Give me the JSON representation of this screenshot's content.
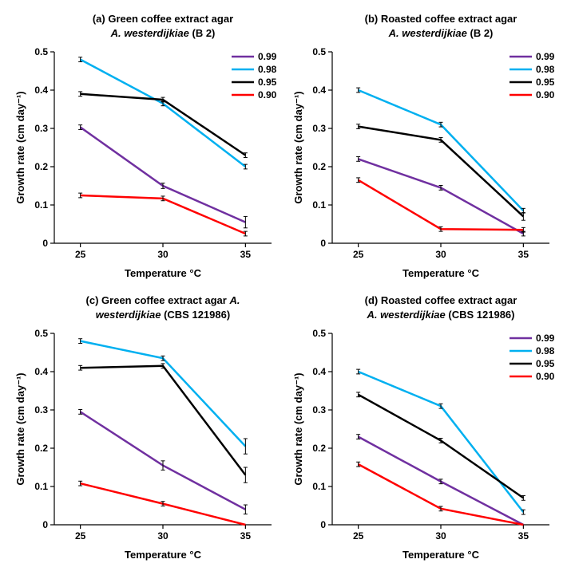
{
  "global": {
    "x_categories": [
      25,
      30,
      35
    ],
    "x_label": "Temperature °C",
    "y_label": "Growth  rate  (cm day⁻¹)",
    "ylim": [
      0,
      0.5
    ],
    "ytick_step": 0.1,
    "background_color": "#ffffff",
    "axis_color": "#000000",
    "axis_width": 1.2,
    "line_width": 2.5,
    "error_bar_color": "#000000",
    "error_bar_width": 1,
    "error_cap_width": 5,
    "title_fontsize": 13,
    "label_fontsize": 13,
    "tick_fontsize": 12,
    "legend_fontsize": 12,
    "series_order": [
      "0.99",
      "0.98",
      "0.95",
      "0.90"
    ],
    "series_colors": {
      "0.99": "#7030a0",
      "0.98": "#00b0f0",
      "0.95": "#000000",
      "0.90": "#ff0000"
    }
  },
  "panels": [
    {
      "key": "a",
      "title_line1": "(a) Green coffee extract agar",
      "title_line2_pre": "A. westerdijkiae ",
      "title_line2_post": "(B 2)",
      "legend": true,
      "series": {
        "0.99": {
          "y": [
            0.303,
            0.15,
            0.055
          ],
          "err": [
            0.006,
            0.007,
            0.015
          ]
        },
        "0.98": {
          "y": [
            0.48,
            0.365,
            0.2
          ],
          "err": [
            0.006,
            0.006,
            0.006
          ]
        },
        "0.95": {
          "y": [
            0.39,
            0.375,
            0.23
          ],
          "err": [
            0.006,
            0.006,
            0.006
          ]
        },
        "0.90": {
          "y": [
            0.125,
            0.117,
            0.025
          ],
          "err": [
            0.006,
            0.006,
            0.006
          ]
        }
      }
    },
    {
      "key": "b",
      "title_line1": "(b) Roasted coffee extract agar",
      "title_line2_pre": "A. westerdijkiae ",
      "title_line2_post": "(B 2)",
      "legend": true,
      "series": {
        "0.99": {
          "y": [
            0.22,
            0.145,
            0.025
          ],
          "err": [
            0.006,
            0.006,
            0.006
          ]
        },
        "0.98": {
          "y": [
            0.4,
            0.31,
            0.085
          ],
          "err": [
            0.006,
            0.006,
            0.006
          ]
        },
        "0.95": {
          "y": [
            0.305,
            0.27,
            0.07
          ],
          "err": [
            0.006,
            0.006,
            0.01
          ]
        },
        "0.90": {
          "y": [
            0.165,
            0.037,
            0.035
          ],
          "err": [
            0.006,
            0.006,
            0.006
          ]
        }
      }
    },
    {
      "key": "c",
      "title_line1": "(c) Green coffee extract agar ",
      "title_line1_italic_tail": "A.",
      "title_line2_pre": "westerdijkiae ",
      "title_line2_post": "(CBS 121986)",
      "legend": false,
      "series": {
        "0.99": {
          "y": [
            0.295,
            0.155,
            0.04
          ],
          "err": [
            0.006,
            0.012,
            0.012
          ]
        },
        "0.98": {
          "y": [
            0.48,
            0.435,
            0.205
          ],
          "err": [
            0.006,
            0.006,
            0.02
          ]
        },
        "0.95": {
          "y": [
            0.41,
            0.415,
            0.13
          ],
          "err": [
            0.006,
            0.006,
            0.02
          ]
        },
        "0.90": {
          "y": [
            0.108,
            0.055,
            0.0
          ],
          "err": [
            0.006,
            0.006,
            0.0
          ]
        }
      }
    },
    {
      "key": "d",
      "title_line1": "(d) Roasted coffee extract agar",
      "title_line2_pre": "A. westerdijkiae ",
      "title_line2_post": "(CBS 121986)",
      "legend": true,
      "series": {
        "0.99": {
          "y": [
            0.23,
            0.113,
            0.0
          ],
          "err": [
            0.006,
            0.006,
            0.0
          ]
        },
        "0.98": {
          "y": [
            0.4,
            0.31,
            0.033
          ],
          "err": [
            0.006,
            0.006,
            0.006
          ]
        },
        "0.95": {
          "y": [
            0.34,
            0.22,
            0.07
          ],
          "err": [
            0.006,
            0.006,
            0.006
          ]
        },
        "0.90": {
          "y": [
            0.158,
            0.042,
            0.0
          ],
          "err": [
            0.006,
            0.006,
            0.0
          ]
        }
      }
    }
  ]
}
